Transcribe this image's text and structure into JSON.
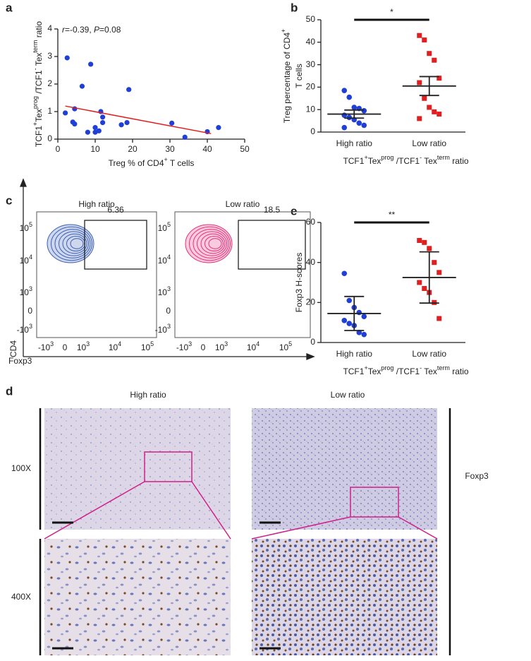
{
  "panels": [
    "a",
    "b",
    "c",
    "d",
    "e"
  ],
  "chart_data": [
    {
      "type": "scatter",
      "annotation": [
        "r",
        "=-0.39, ",
        "P",
        "=0.08"
      ],
      "xlabel": [
        "Treg % of CD4",
        "+",
        " T cells"
      ],
      "ylabel": [
        "TCF1",
        "+",
        "Tex",
        "prog",
        " /TCF1",
        "-",
        " Tex",
        "term",
        " ratio"
      ],
      "x": [
        2.5,
        8.8,
        6.5,
        19,
        2,
        4.5,
        4,
        4.5,
        8,
        10,
        10,
        11.5,
        12,
        12,
        17,
        18.5,
        30.5,
        34,
        40,
        43,
        11
      ],
      "y": [
        2.95,
        2.72,
        1.92,
        1.8,
        0.95,
        1.1,
        0.62,
        0.55,
        0.25,
        0.25,
        0.42,
        1.0,
        0.8,
        0.6,
        0.52,
        0.6,
        0.58,
        0.07,
        0.27,
        0.42,
        0.3
      ],
      "color": "#1f3fd6",
      "trend": {
        "x": [
          2,
          41
        ],
        "y": [
          1.2,
          0.2
        ],
        "color": "#e02020"
      },
      "xlim": [
        0,
        50
      ],
      "xticks": [
        0,
        10,
        20,
        30,
        40,
        50
      ],
      "ylim": [
        0,
        4
      ],
      "yticks": [
        0,
        1,
        2,
        3,
        4
      ]
    },
    {
      "type": "dot",
      "categories": [
        "High ratio",
        "Low ratio"
      ],
      "groups": [
        {
          "values": [
            18.5,
            15.5,
            11,
            10.5,
            9.5,
            7.5,
            6.5,
            5.5,
            4,
            3,
            2
          ],
          "mean": 8,
          "error": 1.8,
          "color": "#1f3fd6",
          "marker": "circle"
        },
        {
          "values": [
            43,
            41,
            35,
            32,
            24,
            22,
            15,
            11,
            9,
            8,
            6
          ],
          "mean": 20.5,
          "error": 4.2,
          "color": "#e02020",
          "marker": "square"
        }
      ],
      "significance": "*",
      "ylabel": [
        [
          "Treg percentage of CD4",
          "+"
        ],
        [
          "T cells"
        ]
      ],
      "xlabel": [
        "TCF1",
        "+",
        "Tex",
        "prog",
        " /TCF1",
        "-",
        " Tex",
        "term",
        " ratio"
      ],
      "ylim": [
        0,
        50
      ],
      "yticks": [
        0,
        10,
        20,
        30,
        40,
        50
      ]
    },
    {
      "type": "dot",
      "categories": [
        "High ratio",
        "Low ratio"
      ],
      "groups": [
        {
          "values": [
            34.5,
            21,
            17.5,
            15,
            13,
            11,
            9.5,
            8.5,
            5,
            4
          ],
          "mean": 14.5,
          "error": 8.5,
          "color": "#1f3fd6",
          "marker": "circle"
        },
        {
          "values": [
            51,
            50,
            47,
            40,
            35,
            30,
            27,
            25,
            20,
            12
          ],
          "mean": 32.5,
          "error": 12.8,
          "color": "#e02020",
          "marker": "square"
        }
      ],
      "significance": "**",
      "ylabel": [
        [
          "Foxp3 H-scores"
        ]
      ],
      "xlabel": [
        "TCF1",
        "+",
        "Tex",
        "prog",
        " /TCF1",
        "-",
        " Tex",
        "term",
        " ratio"
      ],
      "ylim": [
        0,
        60
      ],
      "yticks": [
        0,
        20,
        40,
        60
      ]
    }
  ],
  "flow": {
    "ylabel": "CD4",
    "xlabel": "Foxp3",
    "ticks": [
      [
        "-10",
        "3"
      ],
      [
        "0"
      ],
      [
        "10",
        "3"
      ],
      [
        "10",
        "4"
      ],
      [
        "10",
        "5"
      ]
    ],
    "gate_color": "#e02020",
    "plots": [
      {
        "title": "High ratio",
        "gate": "6.36",
        "color": "#3b5fb4"
      },
      {
        "title": "Low ratio",
        "gate": "18.5",
        "color": "#e8307a"
      }
    ]
  },
  "histology": {
    "columns": [
      "High ratio",
      "Low ratio"
    ],
    "rows": [
      "100X",
      "400X"
    ],
    "stain": "Foxp3"
  }
}
